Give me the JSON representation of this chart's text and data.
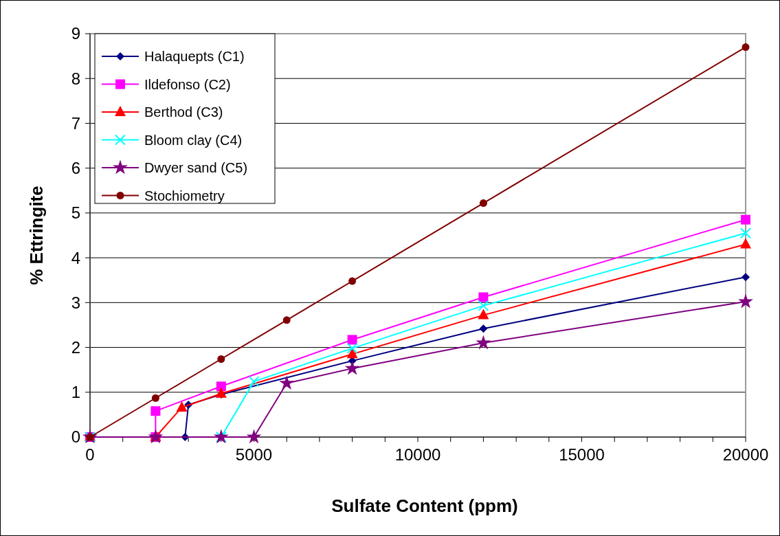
{
  "chart_data": {
    "type": "line",
    "xlabel": "Sulfate Content (ppm)",
    "ylabel": "% Ettringite",
    "xlim": [
      0,
      20000
    ],
    "ylim": [
      0,
      9
    ],
    "xticks": [
      0,
      {
        "value": 1000,
        "label": null
      },
      {
        "value": 2000,
        "label": null
      },
      {
        "value": 3000,
        "label": null
      },
      {
        "value": 4000,
        "label": null
      },
      5000,
      {
        "value": 6000,
        "label": null
      },
      {
        "value": 7000,
        "label": null
      },
      {
        "value": 8000,
        "label": null
      },
      {
        "value": 9000,
        "label": null
      },
      10000,
      {
        "value": 11000,
        "label": null
      },
      {
        "value": 12000,
        "label": null
      },
      {
        "value": 13000,
        "label": null
      },
      {
        "value": 14000,
        "label": null
      },
      15000,
      {
        "value": 16000,
        "label": null
      },
      {
        "value": 17000,
        "label": null
      },
      {
        "value": 18000,
        "label": null
      },
      {
        "value": 19000,
        "label": null
      },
      20000
    ],
    "yticks": [
      0,
      1,
      2,
      3,
      4,
      5,
      6,
      7,
      8,
      9
    ],
    "grid": "y",
    "legend": "top left",
    "series": [
      {
        "name": "Halaquepts (C1)",
        "color": "#000080",
        "marker": "diamond",
        "x": [
          0,
          2000,
          2900,
          3000,
          4000,
          8000,
          12000,
          20000
        ],
        "values": [
          0,
          0,
          0,
          0.72,
          0.95,
          1.7,
          2.42,
          3.57
        ]
      },
      {
        "name": "Ildefonso (C2)",
        "color": "#ff00ff",
        "marker": "square",
        "x": [
          0,
          2000,
          2000,
          4000,
          8000,
          12000,
          20000
        ],
        "values": [
          0,
          0,
          0.58,
          1.13,
          2.17,
          3.12,
          4.85
        ]
      },
      {
        "name": "Berthod (C3)",
        "color": "#ff0000",
        "marker": "triangle",
        "x": [
          0,
          2000,
          2800,
          4000,
          8000,
          12000,
          20000
        ],
        "values": [
          0,
          0,
          0.66,
          0.97,
          1.85,
          2.72,
          4.3
        ]
      },
      {
        "name": "Bloom clay (C4)",
        "color": "#00ffff",
        "marker": "cross",
        "x": [
          0,
          4000,
          5000,
          8000,
          12000,
          20000
        ],
        "values": [
          0,
          0,
          1.24,
          1.98,
          2.93,
          4.55
        ]
      },
      {
        "name": "Dwyer sand (C5)",
        "color": "#800080",
        "marker": "star",
        "x": [
          0,
          2000,
          4000,
          5000,
          6000,
          8000,
          12000,
          20000
        ],
        "values": [
          0,
          0,
          0,
          0,
          1.2,
          1.53,
          2.1,
          3.02
        ]
      },
      {
        "name": "Stochiometry",
        "color": "#800000",
        "marker": "circle",
        "x": [
          0,
          2000,
          4000,
          6000,
          8000,
          12000,
          20000
        ],
        "values": [
          0,
          0.87,
          1.74,
          2.61,
          3.48,
          5.22,
          8.7
        ]
      }
    ]
  }
}
